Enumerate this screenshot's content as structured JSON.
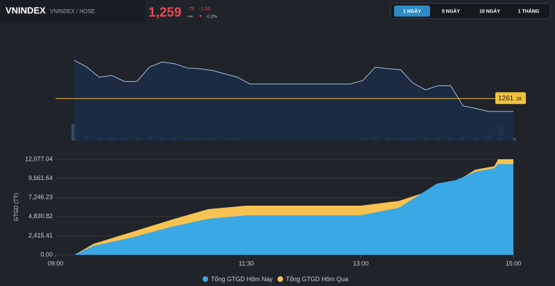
{
  "header": {
    "symbol": "VNINDEX",
    "exchange": "VNINDEX / HOSE",
    "price_int": "1,259",
    "price_dec": ".75",
    "currency": "VNĐ",
    "change": "-1.53",
    "change_pct": "-0.12%"
  },
  "tabs": [
    "1 NGÀY",
    "5 NGÀY",
    "10 NGÀY",
    "1 THÁNG"
  ],
  "chart_data": [
    {
      "type": "line",
      "color": "#a9c7e6",
      "values": [
        1265.8,
        1265.0,
        1263.8,
        1264.0,
        1263.3,
        1263.3,
        1265.0,
        1265.6,
        1265.4,
        1264.9,
        1264.8,
        1264.6,
        1264.2,
        1263.8,
        1263.0,
        1263.0,
        1263.0,
        1263.0,
        1263.0,
        1263.0,
        1263.0,
        1263.0,
        1263.0,
        1263.4,
        1265.0,
        1264.8,
        1264.7,
        1263.1,
        1262.3,
        1262.8,
        1262.8,
        1260.4,
        1260.1,
        1259.75,
        1259.75,
        1259.75
      ],
      "ylim": [
        1256.3,
        1267.2
      ],
      "reference": {
        "value": 1261.28,
        "label_int": "1261",
        "label_dec": ".28",
        "color": "#f0c33c"
      },
      "volume": [
        60,
        20,
        15,
        12,
        10,
        12,
        18,
        15,
        12,
        10,
        10,
        8,
        8,
        10,
        0,
        0,
        0,
        0,
        0,
        0,
        0,
        0,
        0,
        10,
        15,
        12,
        10,
        8,
        10,
        12,
        12,
        15,
        20,
        25,
        60,
        10
      ],
      "volume_lim": [
        0,
        100
      ],
      "volume_color": "#3d5f86"
    },
    {
      "type": "area",
      "y_label": "GTGD (TỶ)",
      "x": [
        9.25,
        9.5,
        10,
        10.5,
        11,
        11.5,
        13,
        13.5,
        14,
        14.25,
        14.5,
        14.75,
        14.8,
        15
      ],
      "series": [
        {
          "name": "Tổng GTGD Hôm Qua",
          "color": "#f7c24f",
          "values": [
            0,
            1400,
            2890,
            4380,
            5780,
            6210,
            6210,
            6820,
            8400,
            9270,
            10760,
            11200,
            12077,
            12077
          ]
        },
        {
          "name": "Tổng GTGD Hôm Nay",
          "color": "#3aa8e4",
          "values": [
            0,
            1137,
            2190,
            3500,
            4550,
            4990,
            4990,
            5950,
            9010,
            9450,
            10500,
            10940,
            11460,
            11460
          ]
        }
      ],
      "xlim": [
        9,
        15
      ],
      "xticks": [
        {
          "value": 9,
          "label": "09:00"
        },
        {
          "value": 11.5,
          "label": "11:30"
        },
        {
          "value": 13,
          "label": "13:00"
        },
        {
          "value": 15,
          "label": "15:00"
        }
      ],
      "ylim": [
        0,
        12077.04
      ],
      "yticks": [
        {
          "value": 0,
          "label": "0.00"
        },
        {
          "value": 2415.41,
          "label": "2,415.41"
        },
        {
          "value": 4830.82,
          "label": "4,830.82"
        },
        {
          "value": 7246.23,
          "label": "7,246.23"
        },
        {
          "value": 9661.64,
          "label": "9,661.64"
        },
        {
          "value": 12077.04,
          "label": "12,077.04"
        }
      ],
      "grid": true,
      "legend": "bottom"
    }
  ]
}
